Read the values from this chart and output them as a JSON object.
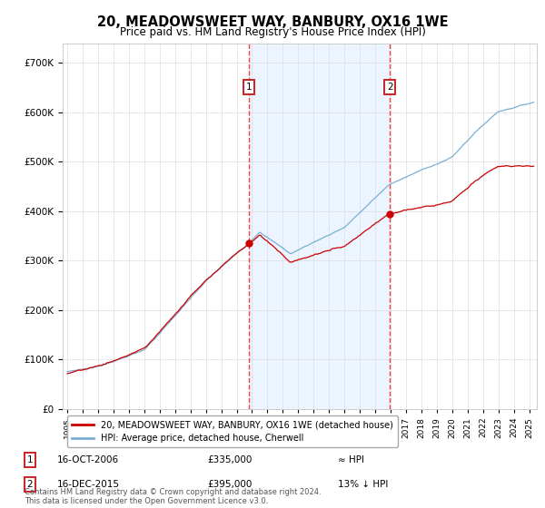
{
  "title": "20, MEADOWSWEET WAY, BANBURY, OX16 1WE",
  "subtitle": "Price paid vs. HM Land Registry's House Price Index (HPI)",
  "sale1_date_x": 2006.79,
  "sale1_price": 335000,
  "sale1_label": "16-OCT-2006",
  "sale1_text": "£335,000",
  "sale1_relation": "≈ HPI",
  "sale2_date_x": 2015.96,
  "sale2_price": 395000,
  "sale2_label": "16-DEC-2015",
  "sale2_text": "£395,000",
  "sale2_relation": "13% ↓ HPI",
  "hpi_line_color": "#7aafd4",
  "price_color": "#cc0000",
  "span_fill_color": "#ddeeff",
  "vline_color": "#ee4444",
  "ylim_min": 0,
  "ylim_max": 740000,
  "xlim_min": 1994.7,
  "xlim_max": 2025.5,
  "footer": "Contains HM Land Registry data © Crown copyright and database right 2024.\nThis data is licensed under the Open Government Licence v3.0.",
  "legend_label1": "20, MEADOWSWEET WAY, BANBURY, OX16 1WE (detached house)",
  "legend_label2": "HPI: Average price, detached house, Cherwell"
}
